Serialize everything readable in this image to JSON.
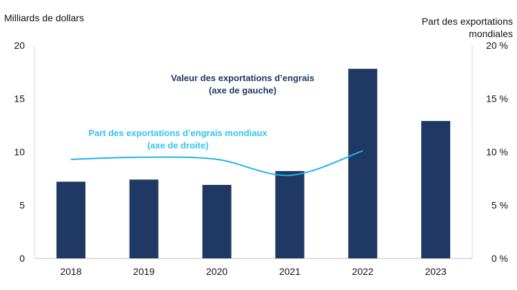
{
  "chart_data": {
    "type": "bar",
    "categories": [
      "2018",
      "2019",
      "2020",
      "2021",
      "2022",
      "2023"
    ],
    "series": [
      {
        "name": "Valeur des exportations d’engrais",
        "type": "bar",
        "axis": "left",
        "color": "#1f3864",
        "values": [
          7.2,
          7.4,
          6.9,
          8.2,
          17.8,
          12.9
        ]
      },
      {
        "name": "Part des exportations d’engrais mondiaux",
        "type": "line",
        "axis": "right",
        "color": "#1fb3ec",
        "values": [
          9.3,
          9.5,
          9.3,
          7.8,
          10.1,
          null
        ]
      }
    ],
    "ylabel_left": "Milliards de dollars",
    "ylabel_right": [
      "Part des exportations",
      "mondiales"
    ],
    "ylim_left": [
      0,
      20
    ],
    "ylim_right": [
      0,
      20
    ],
    "yticks_left": [
      "0",
      "5",
      "10",
      "15",
      "20"
    ],
    "yticks_right": [
      "0 %",
      "5 %",
      "10 %",
      "15 %",
      "20 %"
    ],
    "annotations": {
      "bar": [
        "Valeur des exportations d’engrais",
        "(axe de gauche)"
      ],
      "line": [
        "Part des exportations d’engrais mondiaux",
        "(axe de droite)"
      ]
    },
    "grid": false,
    "legend": "none"
  }
}
